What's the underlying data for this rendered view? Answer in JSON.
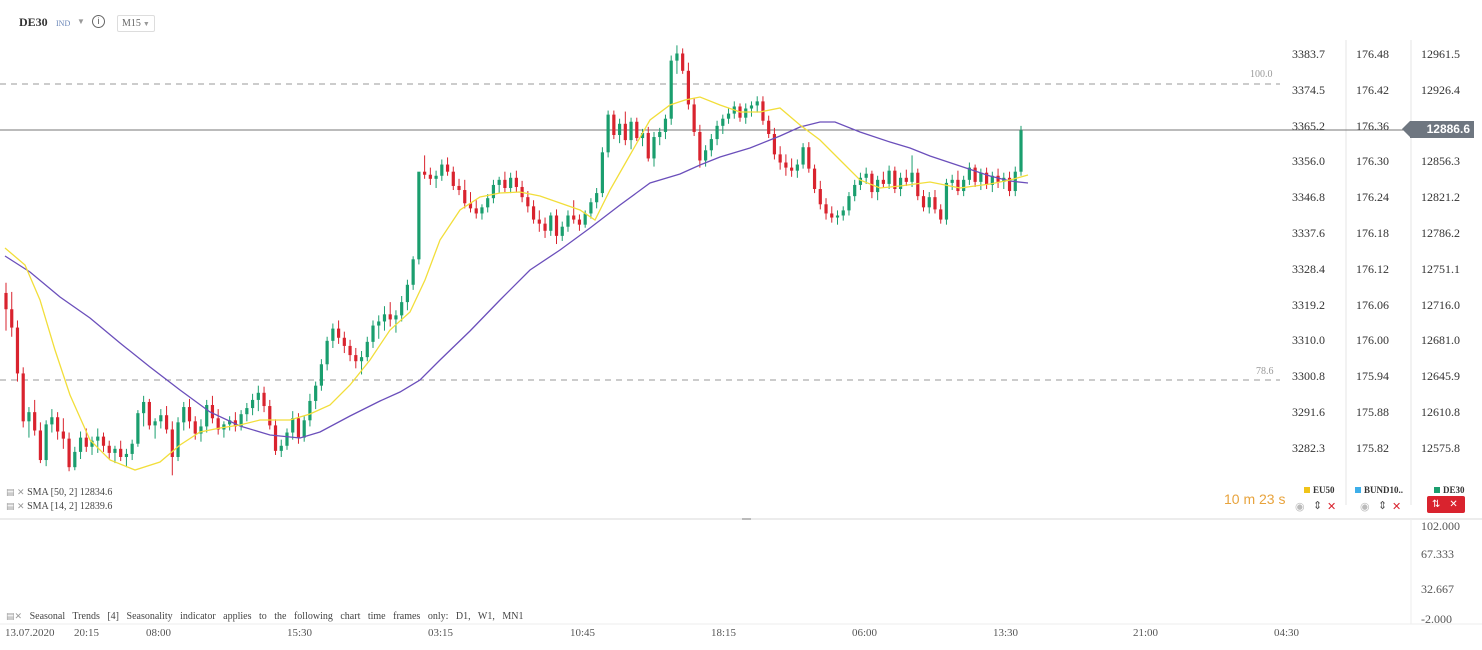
{
  "symbol": "DE30",
  "symbol_type": "IND",
  "timeframe": "M15",
  "last_price": "12886.6",
  "fib_levels": [
    "100.0",
    "78.6"
  ],
  "price_axis_1": [
    "3383.7",
    "3374.5",
    "3365.2",
    "3356.0",
    "3346.8",
    "3337.6",
    "3328.4",
    "3319.2",
    "3310.0",
    "3300.8",
    "3291.6",
    "3282.3"
  ],
  "price_axis_2": [
    "176.48",
    "176.42",
    "176.36",
    "176.30",
    "176.24",
    "176.18",
    "176.12",
    "176.06",
    "176.00",
    "175.94",
    "175.88",
    "175.82"
  ],
  "price_axis_3": [
    "12961.5",
    "12926.4",
    "12891.4",
    "12856.3",
    "12821.2",
    "12786.2",
    "12751.1",
    "12716.0",
    "12681.0",
    "12645.9",
    "12610.8",
    "12575.8"
  ],
  "indicators": [
    {
      "label": "SMA [50, 2] 12834.6"
    },
    {
      "label": "SMA [14, 2] 12839.6"
    }
  ],
  "timer": "10 m  23 s",
  "legend": [
    {
      "name": "EU50",
      "color": "#f0c419"
    },
    {
      "name": "BUND10..",
      "color": "#3daee9"
    },
    {
      "name": "DE30",
      "color": "#1a9e6e"
    }
  ],
  "osc_axis": [
    "102.000",
    "67.333",
    "32.667",
    "-2.000"
  ],
  "seasonal_text": "Seasonal Trends [4] Seasonality indicator applies to the following chart time frames only: D1, W1, MN1",
  "time_axis": [
    "13.07.2020",
    "20:15",
    "08:00",
    "15:30",
    "03:15",
    "10:45",
    "18:15",
    "06:00",
    "13:30",
    "21:00",
    "04:30"
  ],
  "colors": {
    "bull": "#1a9e6e",
    "bear": "#d9232e",
    "sma50": "#6b4fbb",
    "sma14": "#f5e04a"
  },
  "chart_data": {
    "type": "candlestick",
    "symbol": "DE30",
    "timeframe": "M15",
    "ylim": [
      12555,
      12990
    ],
    "last": 12886.6,
    "candles": [
      [
        12727,
        12737,
        12690,
        12711
      ],
      [
        12711,
        12728,
        12684,
        12693
      ],
      [
        12693,
        12700,
        12640,
        12648
      ],
      [
        12648,
        12654,
        12595,
        12601
      ],
      [
        12601,
        12615,
        12585,
        12610
      ],
      [
        12610,
        12622,
        12587,
        12592
      ],
      [
        12592,
        12600,
        12560,
        12563
      ],
      [
        12563,
        12602,
        12557,
        12598
      ],
      [
        12598,
        12613,
        12590,
        12605
      ],
      [
        12605,
        12610,
        12583,
        12591
      ],
      [
        12591,
        12604,
        12574,
        12584
      ],
      [
        12584,
        12590,
        12552,
        12556
      ],
      [
        12556,
        12576,
        12553,
        12571
      ],
      [
        12571,
        12591,
        12564,
        12585
      ],
      [
        12585,
        12594,
        12571,
        12576
      ],
      [
        12576,
        12586,
        12568,
        12582
      ],
      [
        12582,
        12594,
        12570,
        12586
      ],
      [
        12586,
        12590,
        12571,
        12577
      ],
      [
        12577,
        12582,
        12564,
        12570
      ],
      [
        12570,
        12577,
        12560,
        12574
      ],
      [
        12574,
        12582,
        12562,
        12566
      ],
      [
        12566,
        12574,
        12556,
        12569
      ],
      [
        12569,
        12583,
        12563,
        12579
      ],
      [
        12579,
        12612,
        12576,
        12609
      ],
      [
        12609,
        12626,
        12596,
        12620
      ],
      [
        12620,
        12623,
        12593,
        12597
      ],
      [
        12597,
        12604,
        12584,
        12601
      ],
      [
        12601,
        12613,
        12594,
        12607
      ],
      [
        12607,
        12616,
        12589,
        12593
      ],
      [
        12593,
        12601,
        12548,
        12566
      ],
      [
        12566,
        12605,
        12562,
        12600
      ],
      [
        12600,
        12620,
        12592,
        12615
      ],
      [
        12615,
        12623,
        12594,
        12601
      ],
      [
        12601,
        12606,
        12583,
        12589
      ],
      [
        12589,
        12603,
        12581,
        12596
      ],
      [
        12596,
        12622,
        12590,
        12617
      ],
      [
        12617,
        12626,
        12599,
        12604
      ],
      [
        12604,
        12613,
        12588,
        12593
      ],
      [
        12593,
        12601,
        12585,
        12598
      ],
      [
        12598,
        12606,
        12592,
        12602
      ],
      [
        12602,
        12610,
        12591,
        12596
      ],
      [
        12596,
        12612,
        12592,
        12608
      ],
      [
        12608,
        12619,
        12601,
        12614
      ],
      [
        12614,
        12628,
        12607,
        12622
      ],
      [
        12622,
        12636,
        12611,
        12629
      ],
      [
        12629,
        12635,
        12610,
        12616
      ],
      [
        12616,
        12622,
        12593,
        12597
      ],
      [
        12597,
        12603,
        12568,
        12572
      ],
      [
        12572,
        12583,
        12566,
        12577
      ],
      [
        12577,
        12594,
        12573,
        12590
      ],
      [
        12590,
        12611,
        12583,
        12604
      ],
      [
        12604,
        12609,
        12579,
        12585
      ],
      [
        12585,
        12606,
        12581,
        12602
      ],
      [
        12602,
        12628,
        12596,
        12621
      ],
      [
        12621,
        12640,
        12613,
        12636
      ],
      [
        12636,
        12662,
        12631,
        12657
      ],
      [
        12657,
        12684,
        12651,
        12680
      ],
      [
        12680,
        12697,
        12673,
        12692
      ],
      [
        12692,
        12700,
        12677,
        12683
      ],
      [
        12683,
        12689,
        12668,
        12675
      ],
      [
        12675,
        12681,
        12660,
        12666
      ],
      [
        12666,
        12673,
        12653,
        12660
      ],
      [
        12660,
        12670,
        12647,
        12664
      ],
      [
        12664,
        12684,
        12660,
        12679
      ],
      [
        12679,
        12700,
        12673,
        12695
      ],
      [
        12695,
        12705,
        12682,
        12699
      ],
      [
        12699,
        12714,
        12690,
        12706
      ],
      [
        12706,
        12718,
        12694,
        12701
      ],
      [
        12701,
        12710,
        12688,
        12705
      ],
      [
        12705,
        12724,
        12699,
        12718
      ],
      [
        12718,
        12740,
        12710,
        12735
      ],
      [
        12735,
        12763,
        12730,
        12760
      ],
      [
        12760,
        12843,
        12755,
        12846
      ],
      [
        12846,
        12862,
        12839,
        12843
      ],
      [
        12843,
        12850,
        12833,
        12839
      ],
      [
        12839,
        12847,
        12830,
        12842
      ],
      [
        12842,
        12858,
        12837,
        12853
      ],
      [
        12853,
        12860,
        12842,
        12846
      ],
      [
        12846,
        12851,
        12828,
        12832
      ],
      [
        12832,
        12839,
        12823,
        12828
      ],
      [
        12828,
        12838,
        12810,
        12815
      ],
      [
        12815,
        12826,
        12806,
        12810
      ],
      [
        12810,
        12818,
        12800,
        12805
      ],
      [
        12805,
        12814,
        12799,
        12811
      ],
      [
        12811,
        12824,
        12806,
        12820
      ],
      [
        12820,
        12838,
        12815,
        12833
      ],
      [
        12833,
        12841,
        12825,
        12838
      ],
      [
        12838,
        12846,
        12826,
        12830
      ],
      [
        12830,
        12845,
        12825,
        12840
      ],
      [
        12840,
        12847,
        12826,
        12831
      ],
      [
        12831,
        12837,
        12816,
        12821
      ],
      [
        12821,
        12827,
        12806,
        12812
      ],
      [
        12812,
        12818,
        12795,
        12799
      ],
      [
        12799,
        12808,
        12787,
        12795
      ],
      [
        12795,
        12801,
        12781,
        12788
      ],
      [
        12788,
        12806,
        12783,
        12803
      ],
      [
        12803,
        12809,
        12775,
        12783
      ],
      [
        12783,
        12797,
        12778,
        12792
      ],
      [
        12792,
        12808,
        12787,
        12803
      ],
      [
        12803,
        12818,
        12795,
        12799
      ],
      [
        12799,
        12804,
        12788,
        12794
      ],
      [
        12794,
        12808,
        12791,
        12805
      ],
      [
        12805,
        12820,
        12800,
        12816
      ],
      [
        12816,
        12830,
        12810,
        12825
      ],
      [
        12825,
        12870,
        12821,
        12865
      ],
      [
        12865,
        12906,
        12860,
        12902
      ],
      [
        12902,
        12906,
        12878,
        12882
      ],
      [
        12882,
        12898,
        12874,
        12893
      ],
      [
        12893,
        12905,
        12872,
        12877
      ],
      [
        12877,
        12899,
        12868,
        12895
      ],
      [
        12895,
        12899,
        12876,
        12879
      ],
      [
        12879,
        12888,
        12871,
        12884
      ],
      [
        12884,
        12890,
        12856,
        12859
      ],
      [
        12859,
        12885,
        12851,
        12880
      ],
      [
        12880,
        12889,
        12872,
        12885
      ],
      [
        12885,
        12902,
        12878,
        12898
      ],
      [
        12898,
        12960,
        12892,
        12955
      ],
      [
        12955,
        12970,
        12942,
        12962
      ],
      [
        12962,
        12967,
        12942,
        12945
      ],
      [
        12945,
        12953,
        12907,
        12912
      ],
      [
        12912,
        12918,
        12881,
        12885
      ],
      [
        12885,
        12892,
        12850,
        12857
      ],
      [
        12857,
        12872,
        12851,
        12867
      ],
      [
        12867,
        12883,
        12861,
        12878
      ],
      [
        12878,
        12896,
        12872,
        12891
      ],
      [
        12891,
        12902,
        12883,
        12898
      ],
      [
        12898,
        12908,
        12893,
        12903
      ],
      [
        12903,
        12915,
        12898,
        12910
      ],
      [
        12910,
        12913,
        12895,
        12899
      ],
      [
        12899,
        12913,
        12893,
        12908
      ],
      [
        12908,
        12915,
        12900,
        12911
      ],
      [
        12911,
        12920,
        12904,
        12915
      ],
      [
        12915,
        12920,
        12892,
        12896
      ],
      [
        12896,
        12901,
        12879,
        12883
      ],
      [
        12883,
        12889,
        12858,
        12863
      ],
      [
        12863,
        12871,
        12848,
        12855
      ],
      [
        12855,
        12863,
        12842,
        12850
      ],
      [
        12850,
        12859,
        12841,
        12847
      ],
      [
        12847,
        12858,
        12840,
        12853
      ],
      [
        12853,
        12874,
        12849,
        12870
      ],
      [
        12870,
        12875,
        12845,
        12849
      ],
      [
        12849,
        12853,
        12825,
        12829
      ],
      [
        12829,
        12837,
        12809,
        12814
      ],
      [
        12814,
        12820,
        12799,
        12805
      ],
      [
        12805,
        12812,
        12796,
        12801
      ],
      [
        12801,
        12808,
        12794,
        12803
      ],
      [
        12803,
        12812,
        12798,
        12808
      ],
      [
        12808,
        12826,
        12803,
        12822
      ],
      [
        12822,
        12838,
        12817,
        12833
      ],
      [
        12833,
        12845,
        12828,
        12840
      ],
      [
        12840,
        12850,
        12834,
        12844
      ],
      [
        12844,
        12847,
        12820,
        12826
      ],
      [
        12826,
        12842,
        12818,
        12838
      ],
      [
        12838,
        12846,
        12830,
        12834
      ],
      [
        12834,
        12852,
        12829,
        12847
      ],
      [
        12847,
        12851,
        12825,
        12829
      ],
      [
        12829,
        12845,
        12822,
        12840
      ],
      [
        12840,
        12848,
        12832,
        12836
      ],
      [
        12836,
        12862,
        12831,
        12845
      ],
      [
        12845,
        12849,
        12818,
        12822
      ],
      [
        12822,
        12828,
        12807,
        12811
      ],
      [
        12811,
        12826,
        12805,
        12821
      ],
      [
        12821,
        12828,
        12805,
        12809
      ],
      [
        12809,
        12814,
        12795,
        12799
      ],
      [
        12799,
        12839,
        12794,
        12835
      ],
      [
        12835,
        12843,
        12828,
        12838
      ],
      [
        12838,
        12847,
        12823,
        12827
      ],
      [
        12827,
        12842,
        12822,
        12838
      ],
      [
        12838,
        12855,
        12833,
        12850
      ],
      [
        12850,
        12853,
        12831,
        12836
      ],
      [
        12836,
        12849,
        12828,
        12845
      ],
      [
        12845,
        12850,
        12829,
        12833
      ],
      [
        12833,
        12846,
        12826,
        12842
      ],
      [
        12842,
        12849,
        12830,
        12836
      ],
      [
        12836,
        12845,
        12829,
        12840
      ],
      [
        12840,
        12846,
        12822,
        12827
      ],
      [
        12827,
        12851,
        12822,
        12846
      ],
      [
        12846,
        12891,
        12842,
        12886.6
      ]
    ],
    "series": [
      {
        "name": "SMA [50, 2]"
      },
      {
        "name": "SMA [14, 2]"
      }
    ]
  }
}
